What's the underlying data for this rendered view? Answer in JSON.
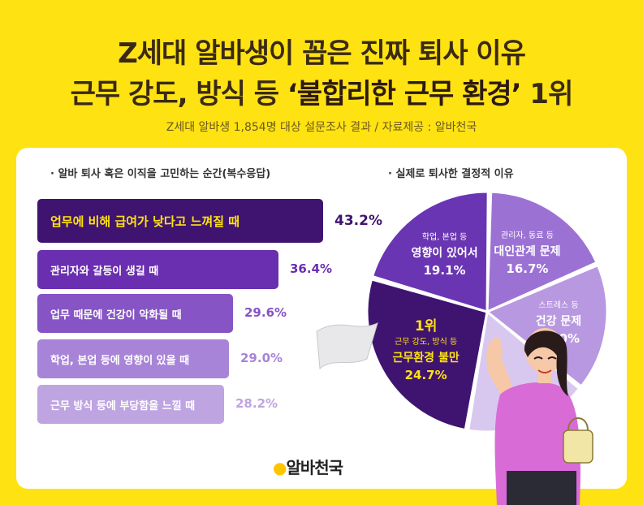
{
  "header": {
    "title_line1": "Z세대 알바생이 꼽은 진짜 퇴사 이유",
    "title_line2_prefix": "근무 강도, 방식 등 ",
    "title_line2_highlight": "‘불합리한 근무 환경’",
    "title_line2_suffix": " 1위",
    "subtitle": "Z세대 알바생 1,854명 대상 설문조사 결과 / 자료제공 : 알바천국"
  },
  "chart_data": [
    {
      "type": "bar",
      "title": "· 알바 퇴사 혹은 이직을 고민하는 순간(복수응답)",
      "categories": [
        "업무에 비해 급여가 낮다고 느껴질 때",
        "관리자와 갈등이 생길 때",
        "업무 때문에 건강이 악화될 때",
        "학업, 본업 등에 영향이 있을 때",
        "근무 방식 등에 부당함을 느낄 때"
      ],
      "values": [
        43.2,
        36.4,
        29.6,
        29.0,
        28.2
      ],
      "value_labels": [
        "43.2%",
        "36.4%",
        "29.6%",
        "29.0%",
        "28.2%"
      ],
      "colors": [
        "#3f1470",
        "#6a2fb0",
        "#8654c4",
        "#a884d8",
        "#bfa4e2"
      ]
    },
    {
      "type": "pie",
      "title": "· 실제로 퇴사한 결정적 이유",
      "slices": [
        {
          "rank": "",
          "label_small": "관리자, 동료 등",
          "label_main": "대인관계 문제",
          "value": 16.7,
          "value_label": "16.7%",
          "color": "#9b72d4"
        },
        {
          "rank": "",
          "label_small": "스트레스 등",
          "label_main": "건강 문제",
          "value": 16.0,
          "value_label": "16.0%",
          "color": "#b898e0"
        },
        {
          "rank": "",
          "label_small": "",
          "label_main": "",
          "value": 15.5,
          "value_label": "",
          "color": "#d8c8ef"
        },
        {
          "rank": "1위",
          "label_small": "근무 강도, 방식 등",
          "label_main": "근무환경 불만",
          "value": 24.7,
          "value_label": "24.7%",
          "color": "#3f1470"
        },
        {
          "rank": "",
          "label_small": "학업, 본업 등",
          "label_main": "영향이 있어서",
          "value": 19.1,
          "value_label": "19.1%",
          "color": "#6a35b2"
        }
      ]
    }
  ],
  "footer": {
    "logo_text": "알바천국"
  }
}
